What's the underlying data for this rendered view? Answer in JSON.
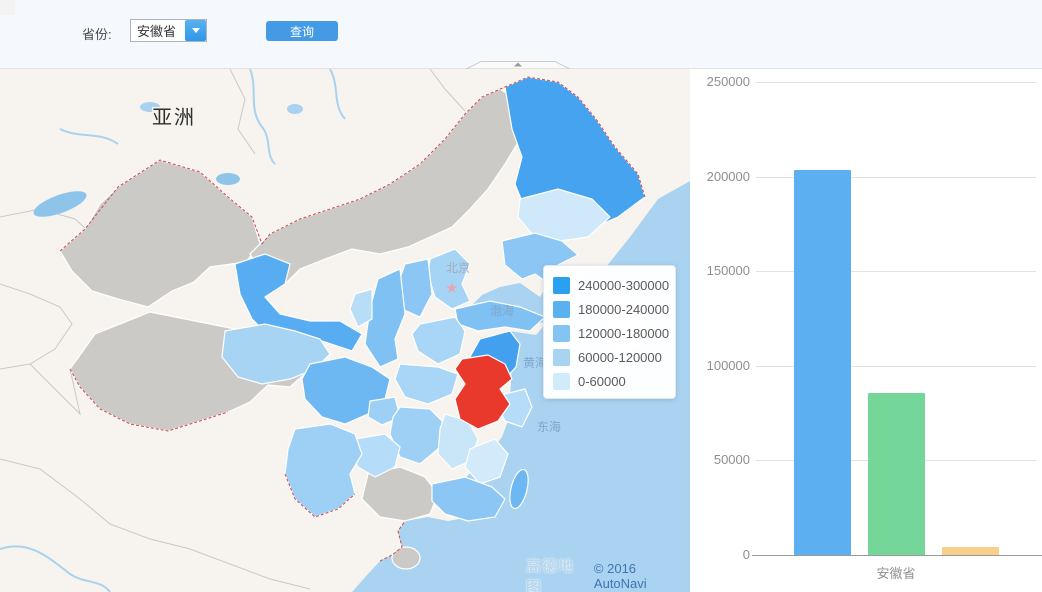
{
  "toolbar": {
    "province_label": "省份:",
    "province_select": {
      "value": "安徽省"
    },
    "query_button": "查询"
  },
  "map": {
    "labels": {
      "continent": "亚洲",
      "capital": "北京",
      "bohai_sea": "渤海",
      "yellow_sea": "黄海",
      "east_china_sea": "东海"
    },
    "legend": {
      "items": [
        {
          "range": "240000-300000",
          "color": "#2b9ff0"
        },
        {
          "range": "180000-240000",
          "color": "#5bb1f0"
        },
        {
          "range": "120000-180000",
          "color": "#84c4f2"
        },
        {
          "range": "60000-120000",
          "color": "#a8d4f2"
        },
        {
          "range": "0-60000",
          "color": "#d2ebfa"
        }
      ]
    },
    "highlighted_province_color": "#e8392c",
    "attribution": {
      "logo": "高德地图",
      "copyright": "© 2016 AutoNavi"
    }
  },
  "chart_data": {
    "type": "bar",
    "title": "",
    "xlabel": "",
    "ylabel": "",
    "categories": [
      "安徽省"
    ],
    "series": [
      {
        "color": "#5cb0f2",
        "values": [
          203500
        ]
      },
      {
        "color": "#74d698",
        "values": [
          85500
        ]
      },
      {
        "color": "#f9d08b",
        "values": [
          4000
        ]
      }
    ],
    "ylim": [
      0,
      250000
    ],
    "yticks": [
      0,
      50000,
      100000,
      150000,
      200000,
      250000
    ],
    "grid": true,
    "legend_position": "none"
  }
}
